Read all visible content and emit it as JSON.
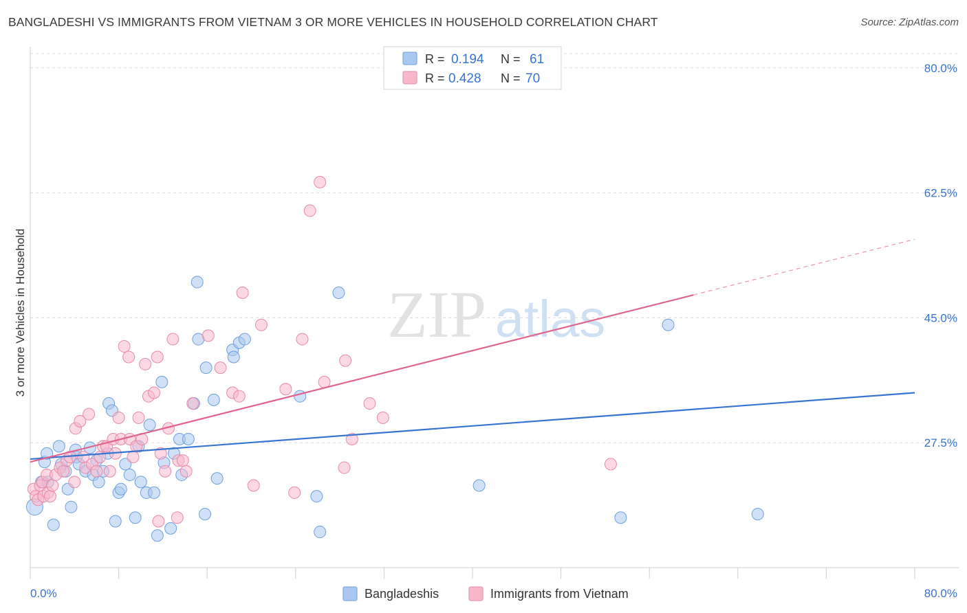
{
  "chart_data": {
    "type": "scatter",
    "title": "BANGLADESHI VS IMMIGRANTS FROM VIETNAM 3 OR MORE VEHICLES IN HOUSEHOLD CORRELATION CHART",
    "source": "Source: ZipAtlas.com",
    "xlabel": "",
    "ylabel": "3 or more Vehicles in Household",
    "xlim": [
      0,
      80
    ],
    "ylim": [
      10,
      82
    ],
    "x_tick_labels": [
      "0.0%",
      "80.0%"
    ],
    "y_ticks": [
      27.5,
      45.0,
      62.5,
      80.0
    ],
    "y_tick_labels": [
      "27.5%",
      "45.0%",
      "62.5%",
      "80.0%"
    ],
    "watermark": {
      "zip": "ZIP",
      "atlas": "atlas"
    },
    "legend_top": [
      {
        "r_label": "R =",
        "r_value": "0.194",
        "n_label": "N =",
        "n_value": "61"
      },
      {
        "r_label": "R =",
        "r_value": "0.428",
        "n_label": "N =",
        "n_value": "70"
      }
    ],
    "series": [
      {
        "name": "Bangladeshis",
        "color": "#a9c8f0",
        "stroke": "#6f9fdc",
        "line_color": "#3674d1",
        "trend": {
          "x0": 0,
          "y0": 25.2,
          "x1": 80,
          "y1": 34.5
        },
        "points": [
          [
            0.4,
            18.5
          ],
          [
            1.0,
            22.0
          ],
          [
            1.3,
            24.8
          ],
          [
            1.5,
            26.0
          ],
          [
            1.6,
            22.0
          ],
          [
            2.1,
            16.0
          ],
          [
            2.6,
            27.0
          ],
          [
            2.8,
            24.5
          ],
          [
            3.2,
            23.5
          ],
          [
            3.4,
            21.0
          ],
          [
            3.7,
            18.5
          ],
          [
            4.2,
            25.5
          ],
          [
            4.4,
            24.5
          ],
          [
            5.0,
            23.5
          ],
          [
            5.4,
            26.8
          ],
          [
            5.7,
            23.0
          ],
          [
            6.2,
            22.0
          ],
          [
            6.6,
            23.5
          ],
          [
            7.0,
            26.0
          ],
          [
            7.1,
            33.0
          ],
          [
            7.4,
            32.0
          ],
          [
            7.7,
            16.5
          ],
          [
            8.0,
            20.5
          ],
          [
            8.2,
            21.0
          ],
          [
            8.6,
            24.5
          ],
          [
            9.0,
            23.0
          ],
          [
            9.5,
            17.0
          ],
          [
            9.8,
            27.0
          ],
          [
            10.0,
            22.0
          ],
          [
            10.5,
            20.5
          ],
          [
            10.8,
            30.0
          ],
          [
            11.2,
            20.5
          ],
          [
            11.5,
            14.5
          ],
          [
            11.9,
            36.0
          ],
          [
            12.1,
            24.7
          ],
          [
            12.7,
            15.5
          ],
          [
            13.0,
            26.0
          ],
          [
            13.5,
            28.0
          ],
          [
            13.7,
            23.0
          ],
          [
            14.3,
            28.0
          ],
          [
            14.8,
            33.0
          ],
          [
            15.1,
            50.0
          ],
          [
            15.2,
            42.0
          ],
          [
            15.8,
            17.5
          ],
          [
            15.9,
            38.0
          ],
          [
            16.6,
            33.5
          ],
          [
            16.9,
            22.5
          ],
          [
            18.3,
            40.5
          ],
          [
            18.4,
            39.5
          ],
          [
            18.9,
            41.5
          ],
          [
            19.4,
            42.0
          ],
          [
            24.4,
            34.0
          ],
          [
            25.9,
            20.0
          ],
          [
            26.2,
            15.0
          ],
          [
            27.9,
            48.5
          ],
          [
            40.6,
            21.5
          ],
          [
            53.4,
            17.0
          ],
          [
            57.7,
            44.0
          ],
          [
            65.8,
            17.5
          ],
          [
            4.1,
            26.5
          ],
          [
            6.0,
            25.0
          ]
        ]
      },
      {
        "name": "Immigrants from Vietnam",
        "color": "#f7b8cc",
        "stroke": "#e68aa8",
        "line_color": "#e0648f",
        "trend": {
          "x0": 0,
          "y0": 24.8,
          "x1": 60,
          "y1": 48.2
        },
        "trend_ext": {
          "x0": 60,
          "y0": 48.2,
          "x1": 80,
          "y1": 56.0
        },
        "points": [
          [
            0.3,
            21.0
          ],
          [
            0.5,
            20.0
          ],
          [
            0.7,
            19.5
          ],
          [
            0.9,
            21.5
          ],
          [
            1.1,
            22.0
          ],
          [
            1.2,
            20.0
          ],
          [
            1.5,
            23.0
          ],
          [
            1.6,
            20.5
          ],
          [
            1.8,
            20.0
          ],
          [
            2.0,
            21.5
          ],
          [
            2.3,
            23.0
          ],
          [
            2.7,
            24.0
          ],
          [
            3.0,
            23.5
          ],
          [
            3.3,
            25.0
          ],
          [
            3.6,
            25.5
          ],
          [
            4.0,
            22.0
          ],
          [
            4.1,
            29.5
          ],
          [
            4.5,
            30.5
          ],
          [
            4.8,
            25.5
          ],
          [
            5.0,
            24.0
          ],
          [
            5.3,
            31.5
          ],
          [
            5.6,
            24.5
          ],
          [
            6.0,
            23.5
          ],
          [
            6.3,
            25.5
          ],
          [
            6.6,
            27.0
          ],
          [
            6.9,
            27.0
          ],
          [
            7.2,
            23.5
          ],
          [
            7.5,
            28.0
          ],
          [
            7.7,
            26.0
          ],
          [
            8.0,
            31.0
          ],
          [
            8.2,
            28.0
          ],
          [
            8.5,
            41.0
          ],
          [
            8.9,
            39.5
          ],
          [
            9.0,
            28.0
          ],
          [
            9.3,
            25.5
          ],
          [
            9.6,
            27.0
          ],
          [
            9.8,
            31.0
          ],
          [
            10.1,
            28.0
          ],
          [
            10.4,
            38.5
          ],
          [
            10.7,
            34.0
          ],
          [
            11.2,
            34.5
          ],
          [
            11.5,
            39.5
          ],
          [
            11.6,
            16.5
          ],
          [
            11.8,
            26.0
          ],
          [
            12.2,
            23.5
          ],
          [
            12.5,
            29.5
          ],
          [
            12.9,
            42.0
          ],
          [
            13.3,
            17.0
          ],
          [
            13.4,
            25.0
          ],
          [
            13.8,
            25.0
          ],
          [
            14.1,
            23.5
          ],
          [
            14.7,
            33.0
          ],
          [
            16.1,
            42.5
          ],
          [
            17.2,
            38.0
          ],
          [
            18.3,
            34.5
          ],
          [
            18.9,
            34.0
          ],
          [
            19.2,
            48.5
          ],
          [
            20.2,
            21.5
          ],
          [
            20.9,
            44.0
          ],
          [
            23.1,
            35.0
          ],
          [
            23.9,
            20.5
          ],
          [
            24.6,
            42.0
          ],
          [
            25.3,
            60.0
          ],
          [
            26.2,
            64.0
          ],
          [
            26.6,
            36.0
          ],
          [
            28.5,
            39.0
          ],
          [
            28.4,
            24.0
          ],
          [
            29.1,
            28.0
          ],
          [
            30.7,
            33.0
          ],
          [
            31.9,
            31.0
          ],
          [
            52.5,
            24.5
          ]
        ]
      }
    ],
    "legend_bottom": [
      "Bangladeshis",
      "Immigrants from Vietnam"
    ]
  }
}
